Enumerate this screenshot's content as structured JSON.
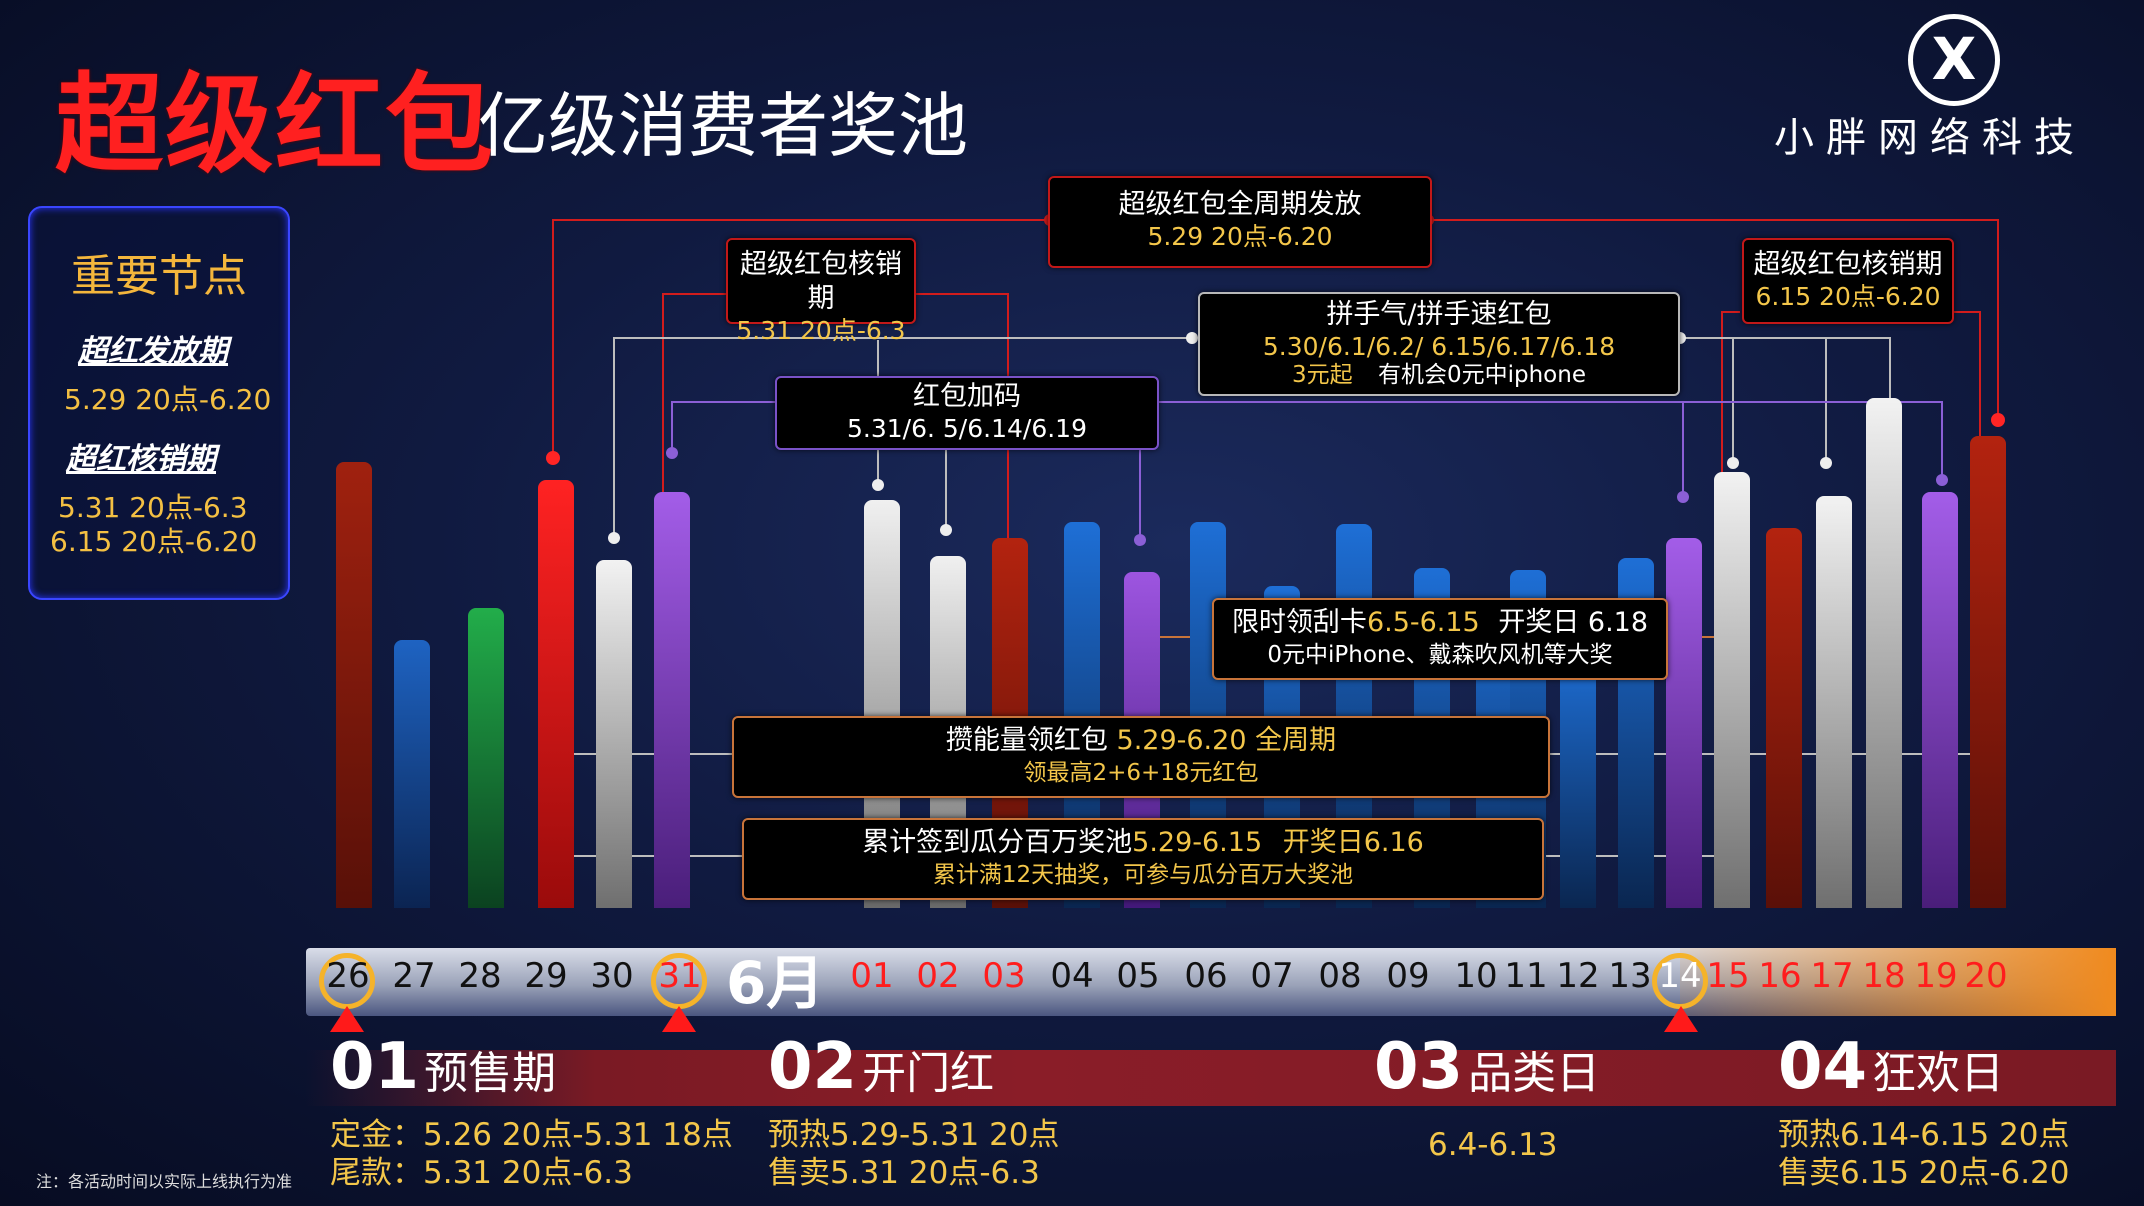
{
  "header": {
    "title_main": "超级红包",
    "title_sub": "亿级消费者奖池",
    "brand": "小胖网络科技",
    "logo_char": "X"
  },
  "key_nodes": {
    "title": "重要节点",
    "heading1": "超红发放期",
    "value1": "5.29 20点-6.20",
    "heading2": "超红核销期",
    "value2a": "5.31 20点-6.3",
    "value2b": "6.15 20点-6.20"
  },
  "labels": {
    "full_period": {
      "line1": "超级红包全周期发放",
      "line2": "5.29 20点-6.20"
    },
    "redeem1": {
      "line1": "超级红包核销期",
      "line2": "5.31 20点-6.3"
    },
    "redeem2": {
      "line1": "超级红包核销期",
      "line2": "6.15 20点-6.20"
    },
    "pin": {
      "line1": "拼手气/拼手速红包",
      "line2": "5.30/6.1/6.2/ 6.15/6.17/6.18",
      "line3a": "3元起",
      "line3b": "有机会0元中iphone"
    },
    "bonus": {
      "line1": "红包加码",
      "line2": "5.31/6. 5/6.14/6.19"
    },
    "scratch": {
      "line1a": "限时领刮卡",
      "line1b": "6.5-6.15",
      "line1c": "开奖日 6.18",
      "line2": "0元中iPhone、戴森吹风机等大奖"
    },
    "energy": {
      "line1a": "攒能量领红包",
      "line1b": "5.29-6.20 全周期",
      "line2": "领最高2+6+18元红包"
    },
    "signin": {
      "line1a": "累计签到瓜分百万奖池",
      "line1b": "5.29-6.15",
      "line1c": "开奖日6.16",
      "line2": "累计满12天抽奖，可参与瓜分百万大奖池"
    }
  },
  "timeline": {
    "month_label": "6月",
    "days_may": [
      "26",
      "27",
      "28",
      "29",
      "30",
      "31"
    ],
    "days_june": [
      "01",
      "02",
      "03",
      "04",
      "05",
      "06",
      "07",
      "08",
      "09",
      "10",
      "11",
      "12",
      "13",
      "14",
      "15",
      "16",
      "17",
      "18",
      "19",
      "20"
    ]
  },
  "phases": [
    {
      "num": "01",
      "name": "预售期",
      "info1": "定金：5.26 20点-5.31 18点",
      "info2": "尾款：5.31 20点-6.3"
    },
    {
      "num": "02",
      "name": "开门红",
      "info1": "预热5.29-5.31 20点",
      "info2": "售卖5.31 20点-6.3"
    },
    {
      "num": "03",
      "name": "品类日",
      "info1": "6.4-6.13",
      "info2": ""
    },
    {
      "num": "04",
      "name": "狂欢日",
      "info1": "预热6.14-6.15 20点",
      "info2": "售卖6.15 20点-6.20"
    }
  ],
  "note": "注：各活动时间以实际上线执行为准",
  "colors": {
    "accent_red": "#ff2020",
    "gold": "#f3c64a",
    "panel_border": "#3a46ff"
  }
}
